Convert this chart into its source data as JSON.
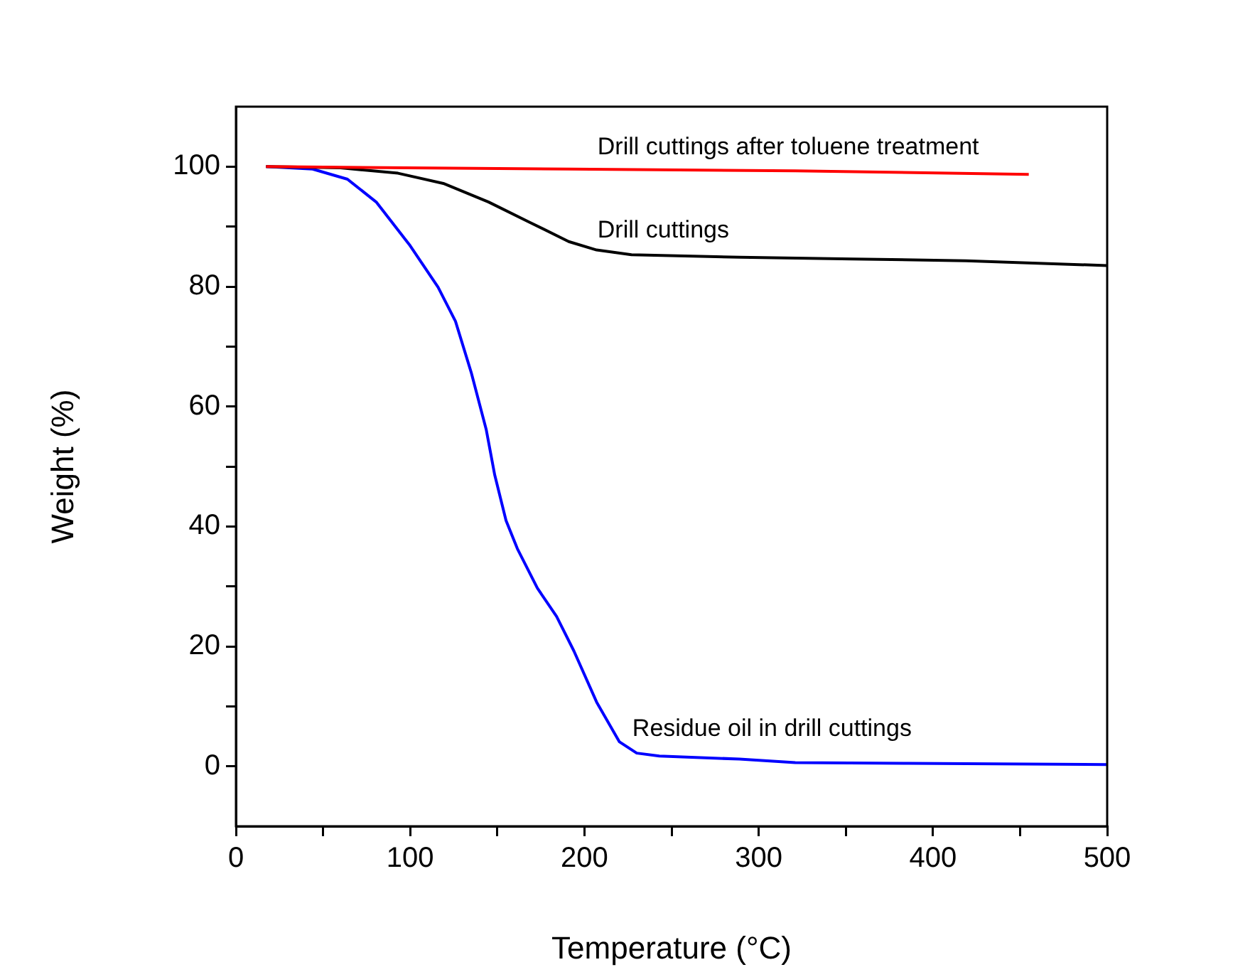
{
  "chart_data": {
    "type": "line",
    "xlabel": "Temperature (°C)",
    "ylabel": "Weight (%)",
    "xlim": [
      0,
      500
    ],
    "ylim": [
      -10,
      110
    ],
    "xticks": [
      0,
      {
        "value": 50,
        "label": null
      },
      100,
      {
        "value": 150,
        "label": null
      },
      200,
      {
        "value": 250,
        "label": null
      },
      300,
      {
        "value": 350,
        "label": null
      },
      400,
      {
        "value": 450,
        "label": null
      },
      500
    ],
    "yticks": [
      0,
      {
        "value": 10,
        "label": null
      },
      20,
      {
        "value": 30,
        "label": null
      },
      40,
      {
        "value": 50,
        "label": null
      },
      60,
      {
        "value": 70,
        "label": null
      },
      80,
      {
        "value": 90,
        "label": null
      },
      100
    ],
    "grid": false,
    "legend": false,
    "marker": "none",
    "line_style": "solid",
    "series": [
      {
        "name": "Drill cuttings after toluene treatment",
        "color": "#ff0000",
        "x": [
          17.3,
          191,
          321,
          455
        ],
        "values": [
          100,
          99.6,
          99.3,
          98.7
        ]
      },
      {
        "name": "Drill cuttings",
        "color": "#000000",
        "x": [
          17.3,
          60,
          93,
          119,
          145,
          168,
          191,
          207,
          227,
          289,
          354,
          419,
          500
        ],
        "values": [
          100,
          99.8,
          98.9,
          97.2,
          94.1,
          90.8,
          87.5,
          86.1,
          85.3,
          84.9,
          84.6,
          84.3,
          83.5
        ]
      },
      {
        "name": "Residue oil in drill cuttings",
        "color": "#0000ff",
        "x": [
          17.3,
          44,
          64,
          80.5,
          99.5,
          116,
          126,
          135,
          143.6,
          148.5,
          155,
          161.5,
          173,
          184,
          194,
          207,
          220,
          230,
          243,
          289,
          321,
          386,
          500
        ],
        "values": [
          100,
          99.6,
          97.9,
          94.1,
          87,
          79.9,
          74.2,
          65.7,
          56.2,
          48.6,
          41,
          36.3,
          29.7,
          25,
          19.2,
          10.7,
          4.1,
          2.2,
          1.7,
          1.2,
          0.6,
          0.5,
          0.3
        ]
      }
    ]
  }
}
